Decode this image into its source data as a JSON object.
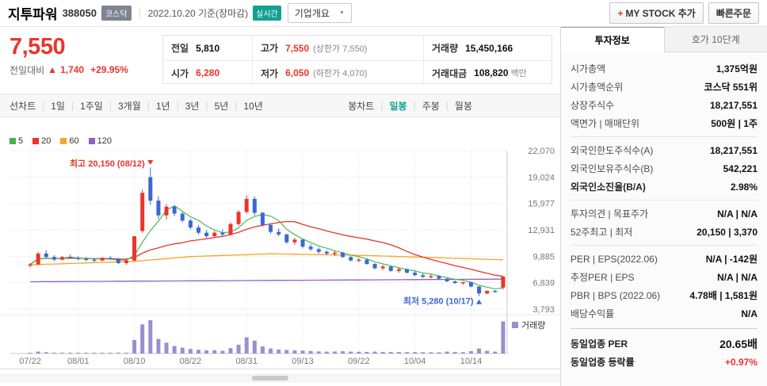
{
  "header": {
    "stock_name": "지투파워",
    "stock_code": "388050",
    "market_badge": "코스닥",
    "date_info": "2022.10.20 기준(장마감)",
    "realtime_badge": "실시간",
    "company_overview": "기업개요",
    "my_stock_plus": "+",
    "my_stock_label": "MY STOCK 추가",
    "quick_order_label": "빠른주문"
  },
  "price": {
    "current": "7,550",
    "change_label": "전일대비",
    "change_arrow": "▲",
    "change_value": "1,740",
    "change_percent": "+29.95%"
  },
  "summary_table": {
    "prev_label": "전일",
    "prev_value": "5,810",
    "high_label": "고가",
    "high_value": "7,550",
    "high_note": "(상한가 7,550)",
    "volume_label": "거래량",
    "volume_value": "15,450,166",
    "open_label": "시가",
    "open_value": "6,280",
    "low_label": "저가",
    "low_value": "6,050",
    "low_note": "(하한가 4,070)",
    "amount_label": "거래대금",
    "amount_value": "108,820",
    "amount_unit": "백만"
  },
  "toolbar": {
    "line_chart_label": "선차트",
    "periods": [
      "1일",
      "1주일",
      "3개월",
      "1년",
      "3년",
      "5년",
      "10년"
    ],
    "candle_chart_label": "봉차트",
    "candle_types": [
      "일봉",
      "주봉",
      "월봉"
    ],
    "selected": "일봉",
    "selected_color": "#0aa18f"
  },
  "chart_data": {
    "type": "candlestick",
    "legend": [
      {
        "label": "5",
        "color": "#3db44c"
      },
      {
        "label": "20",
        "color": "#e8362c"
      },
      {
        "label": "60",
        "color": "#f5a623"
      },
      {
        "label": "120",
        "color": "#8f63c7"
      }
    ],
    "y_ticks": [
      22070,
      19024,
      15977,
      12931,
      9885,
      6839,
      3793
    ],
    "x_tick_labels": [
      "07/22",
      "08/01",
      "08/10",
      "08/22",
      "08/31",
      "09/13",
      "09/22",
      "10/04",
      "10/14"
    ],
    "x_tick_indices": [
      0,
      6,
      13,
      20,
      27,
      34,
      41,
      48,
      55
    ],
    "annotations": {
      "high": {
        "label": "최고 20,150 (08/12)",
        "index": 15,
        "value": 20150
      },
      "low": {
        "label": "최저 5,280 (10/17)",
        "index": 56,
        "value": 5280
      }
    },
    "volume_label": "거래량",
    "colors": {
      "up": "#e8362c",
      "down": "#3c68d0",
      "volume": "#998fd0",
      "ma5": "#3db44c",
      "ma20": "#e8362c",
      "ma60": "#f5a623",
      "ma120": "#8f63c7",
      "grid": "#dcdcdc",
      "axis": "#c9c9c9",
      "tick_text": "#787878"
    },
    "candles": [
      [
        8800,
        9100,
        8600,
        8950
      ],
      [
        8950,
        10400,
        8900,
        10200
      ],
      [
        10200,
        10600,
        9700,
        9800
      ],
      [
        9800,
        10000,
        9300,
        9500
      ],
      [
        9500,
        9900,
        9400,
        9800
      ],
      [
        9800,
        10100,
        9600,
        9700
      ],
      [
        9700,
        9900,
        9400,
        9600
      ],
      [
        9600,
        9800,
        9300,
        9500
      ],
      [
        9500,
        9700,
        9200,
        9400
      ],
      [
        9400,
        9800,
        9300,
        9700
      ],
      [
        9700,
        9900,
        9500,
        9600
      ],
      [
        9600,
        9700,
        9000,
        9100
      ],
      [
        9100,
        9500,
        8900,
        9400
      ],
      [
        9400,
        12200,
        9300,
        12200
      ],
      [
        12800,
        17600,
        12600,
        17200
      ],
      [
        19000,
        20150,
        15800,
        16300
      ],
      [
        16300,
        16800,
        14200,
        14600
      ],
      [
        14600,
        15900,
        14100,
        15600
      ],
      [
        15600,
        15800,
        14500,
        14800
      ],
      [
        14800,
        15000,
        13800,
        14000
      ],
      [
        14000,
        14200,
        13000,
        13200
      ],
      [
        13200,
        13500,
        12400,
        12600
      ],
      [
        12600,
        12900,
        12000,
        12200
      ],
      [
        12200,
        12800,
        12000,
        12600
      ],
      [
        12600,
        13000,
        12200,
        12400
      ],
      [
        12400,
        13800,
        12300,
        13600
      ],
      [
        13600,
        15200,
        13400,
        15000
      ],
      [
        15000,
        16900,
        14800,
        16500
      ],
      [
        16500,
        16800,
        14600,
        14900
      ],
      [
        14900,
        15000,
        13300,
        13500
      ],
      [
        13500,
        13700,
        12500,
        12700
      ],
      [
        12700,
        13100,
        12200,
        12400
      ],
      [
        12400,
        12500,
        11300,
        11500
      ],
      [
        11500,
        12000,
        11200,
        11800
      ],
      [
        11800,
        11900,
        10800,
        11000
      ],
      [
        11000,
        11300,
        10500,
        10700
      ],
      [
        10700,
        10900,
        10200,
        10400
      ],
      [
        10400,
        10600,
        10000,
        10200
      ],
      [
        10200,
        10500,
        9900,
        10300
      ],
      [
        10300,
        10400,
        9700,
        9800
      ],
      [
        9800,
        9900,
        9300,
        9400
      ],
      [
        9400,
        9700,
        9200,
        9500
      ],
      [
        9500,
        9600,
        8900,
        9000
      ],
      [
        9000,
        9100,
        8400,
        8500
      ],
      [
        8500,
        8900,
        8300,
        8700
      ],
      [
        8700,
        8800,
        8100,
        8200
      ],
      [
        8200,
        8600,
        8000,
        8400
      ],
      [
        8400,
        8500,
        7900,
        8000
      ],
      [
        8000,
        8200,
        7600,
        7700
      ],
      [
        7700,
        7900,
        7400,
        7500
      ],
      [
        7500,
        7800,
        7300,
        7600
      ],
      [
        7600,
        7700,
        7200,
        7300
      ],
      [
        7300,
        7350,
        6900,
        7000
      ],
      [
        7000,
        7100,
        6700,
        6800
      ],
      [
        6800,
        6950,
        6600,
        6900
      ],
      [
        6900,
        6950,
        6300,
        6400
      ],
      [
        6400,
        6450,
        5280,
        5600
      ],
      [
        5600,
        5950,
        5500,
        5900
      ],
      [
        5900,
        6000,
        5700,
        5810
      ],
      [
        6280,
        7550,
        6050,
        7550
      ]
    ],
    "volumes": [
      250,
      900,
      600,
      400,
      300,
      280,
      260,
      240,
      230,
      300,
      260,
      420,
      380,
      6500,
      14000,
      16000,
      7000,
      5200,
      3600,
      2800,
      2200,
      1800,
      1500,
      1600,
      1300,
      2600,
      4200,
      7800,
      6200,
      3400,
      2400,
      1900,
      1700,
      1500,
      1400,
      1200,
      1000,
      900,
      950,
      1100,
      900,
      850,
      800,
      900,
      750,
      700,
      680,
      650,
      700,
      620,
      600,
      580,
      900,
      700,
      650,
      1100,
      2400,
      1300,
      900,
      15450
    ],
    "ma60_points": [
      [
        0,
        8900
      ],
      [
        13,
        9300
      ],
      [
        20,
        9850
      ],
      [
        30,
        10170
      ],
      [
        41,
        10000
      ],
      [
        59,
        9480
      ]
    ],
    "ma120_points": [
      [
        0,
        6950
      ],
      [
        59,
        7250
      ]
    ]
  },
  "sidebar": {
    "tabs": [
      "투자정보",
      "호가 10단계"
    ],
    "active_tab": "투자정보",
    "rows": [
      {
        "label": "시가총액",
        "value": "1,375억원"
      },
      {
        "label": "시가총액순위",
        "value": "코스닥 551위"
      },
      {
        "label": "상장주식수",
        "value": "18,217,551"
      },
      {
        "label": "액면가 | 매매단위",
        "value": "500원 | 1주",
        "divider": "thin"
      },
      {
        "label": "외국인한도주식수(A)",
        "value": "18,217,551"
      },
      {
        "label": "외국인보유주식수(B)",
        "value": "542,221"
      },
      {
        "label": "외국인소진율(B/A)",
        "value": "2.98%",
        "em": true,
        "divider": "thin"
      },
      {
        "label": "투자의견 | 목표주가",
        "value": "N/A | N/A"
      },
      {
        "label": "52주최고 | 최저",
        "value": "20,150 | 3,370",
        "divider": "thin"
      },
      {
        "label": "PER | EPS(2022.06)",
        "value": "N/A | -142원"
      },
      {
        "label": "추정PER | EPS",
        "value": "N/A | N/A"
      },
      {
        "label": "PBR | BPS (2022.06)",
        "value": "4.78배 | 1,581원"
      },
      {
        "label": "배당수익률",
        "value": "N/A",
        "divider": "strong"
      },
      {
        "label": "동일업종 PER",
        "value": "20.65배",
        "em": true,
        "big": true
      },
      {
        "label": "동일업종 등락률",
        "value": "+0.97%",
        "em": true,
        "color": "red"
      }
    ]
  }
}
